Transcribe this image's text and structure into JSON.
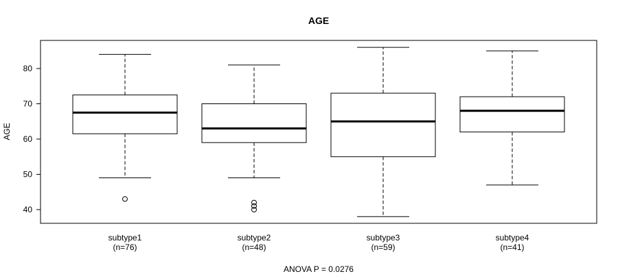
{
  "chart_data": {
    "type": "boxplot",
    "title": "AGE",
    "xlabel": "",
    "ylabel": "AGE",
    "ylim": [
      36,
      88
    ],
    "yticks": [
      40,
      50,
      60,
      70,
      80
    ],
    "groups": [
      {
        "name": "subtype1",
        "n_label": "(n=76)",
        "whisker_low": 49,
        "q1": 61.5,
        "median": 67.5,
        "q3": 72.5,
        "whisker_high": 84,
        "outliers": [
          43
        ]
      },
      {
        "name": "subtype2",
        "n_label": "(n=48)",
        "whisker_low": 49,
        "q1": 59,
        "median": 63,
        "q3": 70,
        "whisker_high": 81,
        "outliers": [
          40,
          41,
          42
        ]
      },
      {
        "name": "subtype3",
        "n_label": "(n=59)",
        "whisker_low": 38,
        "q1": 55,
        "median": 65,
        "q3": 73,
        "whisker_high": 86,
        "outliers": []
      },
      {
        "name": "subtype4",
        "n_label": "(n=41)",
        "whisker_low": 47,
        "q1": 62,
        "median": 68,
        "q3": 72,
        "whisker_high": 85,
        "outliers": []
      }
    ],
    "footer": "ANOVA P = 0.0276"
  }
}
